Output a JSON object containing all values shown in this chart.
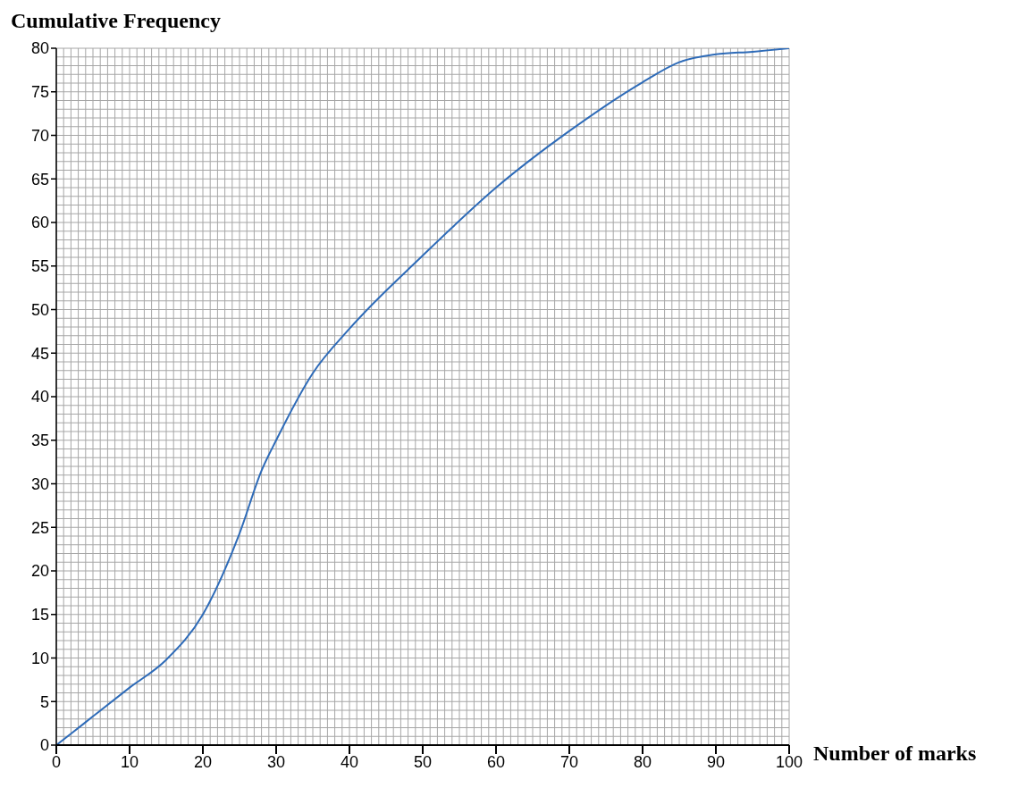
{
  "chart_data": {
    "type": "line",
    "xlabel": "Number of marks",
    "ylabel": "Cumulative Frequency",
    "x": [
      0,
      2,
      5,
      10,
      15,
      20,
      25,
      28,
      30,
      35,
      40,
      50,
      60,
      70,
      80,
      85,
      90,
      95,
      100
    ],
    "series": [
      {
        "color": "#2e6bb8",
        "values": [
          0,
          1.3,
          3.3,
          6.6,
          9.8,
          15,
          24.3,
          31.5,
          35,
          42.7,
          47.8,
          56.2,
          64,
          70.5,
          76.1,
          78.4,
          79.3,
          79.6,
          80
        ]
      }
    ],
    "xlim": [
      0,
      100
    ],
    "xticks": [
      0,
      10,
      20,
      30,
      40,
      50,
      60,
      70,
      80,
      90,
      100
    ],
    "ylim": [
      0,
      80
    ],
    "yticks": [
      0,
      5,
      10,
      15,
      20,
      25,
      30,
      35,
      40,
      45,
      50,
      55,
      60,
      65,
      70,
      75,
      80
    ],
    "grid": true,
    "marker": "none",
    "line_style": "solid"
  }
}
